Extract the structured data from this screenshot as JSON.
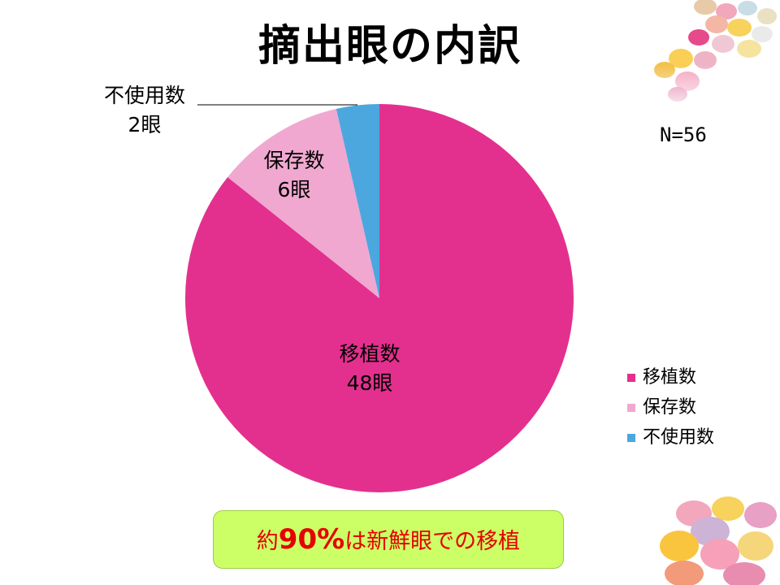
{
  "slide": {
    "title": "摘出眼の内訳",
    "n_label": "N=56"
  },
  "chart_data": {
    "type": "pie",
    "total": 56,
    "unit": "眼",
    "slices": [
      {
        "name": "移植数",
        "value": 48,
        "value_label": "48眼",
        "color": "#e3308e"
      },
      {
        "name": "保存数",
        "value": 6,
        "value_label": "6眼",
        "color": "#f0a8d0"
      },
      {
        "name": "不使用数",
        "value": 2,
        "value_label": "2眼",
        "color": "#4ca7df"
      }
    ],
    "legend": {
      "placement": "right",
      "items": [
        "移植数",
        "保存数",
        "不使用数"
      ]
    }
  },
  "callout": {
    "prefix": "約",
    "emphasis": "90%",
    "suffix": "は新鮮眼での移植"
  },
  "decorations": {
    "top_right": "candy-eggs-image",
    "bottom_right": "candy-eggs-image"
  }
}
